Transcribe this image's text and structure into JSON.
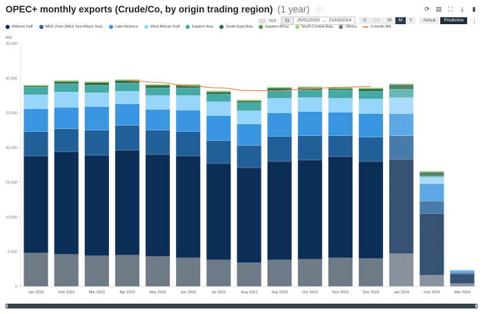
{
  "header": {
    "title": "OPEC+ monthly exports (Crude/Co, by origin trading region)",
    "subtitle": "(1 year)",
    "info_icon": "info-icon"
  },
  "toolbar": {
    "icons": [
      "refresh-icon",
      "comment-icon",
      "fullscreen-icon",
      "download-icon",
      "bookmark-icon"
    ],
    "yoy_label": "YoY",
    "period_label": "1y",
    "date_from": "25/01/2023",
    "date_sep": "–",
    "date_to": "21/03/2024",
    "granularity": [
      {
        "label": "D",
        "state": "normal"
      },
      {
        "label": "EIA",
        "state": "disabled"
      },
      {
        "label": "W",
        "state": "normal"
      },
      {
        "label": "M",
        "state": "active"
      },
      {
        "label": "Y",
        "state": "normal"
      }
    ],
    "mode": [
      {
        "label": "Actual",
        "state": "normal"
      },
      {
        "label": "Predictive",
        "state": "active"
      }
    ],
    "more_icon": "more-vertical-icon"
  },
  "colors": {
    "Others": "#6e7b87",
    "Mideast Gulf": "#0c2d55",
    "MED Zone (MED Sea+Black Sea)": "#215f98",
    "Latin America": "#3a95e0",
    "West African Gulf": "#97d6fb",
    "Eastern Asia": "#45aaa6",
    "South-East Asia": "#2e6b46",
    "Eastern Africa": "#4d9e3b",
    "South-Central Asia": "#a4d47a",
    "3-month MA": "#e28a4e"
  },
  "chart_data": {
    "type": "bar",
    "stacked": true,
    "title": "OPEC+ monthly exports (Crude/Co, by origin trading region)",
    "xlabel": "",
    "ylabel": "kbd",
    "ylim": [
      0,
      35000
    ],
    "yticks": [
      "0",
      "5,000",
      "10,000",
      "15,000",
      "20,000",
      "25,000",
      "30,000",
      "35,000"
    ],
    "ytick_values": [
      0,
      5000,
      10000,
      15000,
      20000,
      25000,
      30000,
      35000
    ],
    "grid": false,
    "legend_position": "top-left",
    "categories": [
      "Jan 2023",
      "Feb 2023",
      "Mar 2023",
      "Apr 2023",
      "May 2023",
      "Jun 2023",
      "Jul 2023",
      "Aug 2023",
      "Sep 2023",
      "Oct 2023",
      "Nov 2023",
      "Dec 2023",
      "Jan 2024",
      "Feb 2024",
      "Mar 2024"
    ],
    "predictive_from_index": 12,
    "legend_order": [
      "Midexst Gulf",
      "MED Zone (MED Sea+Black Sea)",
      "Latin America",
      "West African Gulf",
      "Eastern Asia",
      "South-East Asia",
      "Eastern Africa",
      "South-Central Asia",
      "Others",
      "3-month MA"
    ],
    "series": [
      {
        "name": "Others",
        "values": [
          4800,
          4600,
          4400,
          4500,
          4300,
          4100,
          3800,
          3400,
          3800,
          3900,
          4100,
          4000,
          4700,
          1600,
          400
        ]
      },
      {
        "name": "Midexst Gulf",
        "values": [
          14000,
          14800,
          14500,
          15100,
          14700,
          14700,
          13900,
          13700,
          14200,
          14300,
          14600,
          14000,
          13600,
          8900,
          1400
        ]
      },
      {
        "name": "MED Zone (MED Sea+Black Sea)",
        "values": [
          3500,
          3300,
          3600,
          3600,
          3500,
          3500,
          3300,
          3200,
          3600,
          3500,
          3000,
          3500,
          3400,
          1800,
          200
        ]
      },
      {
        "name": "Latin America",
        "values": [
          3300,
          3100,
          3400,
          3100,
          3000,
          3100,
          3600,
          3100,
          3400,
          3500,
          3400,
          3400,
          3200,
          2500,
          300
        ]
      },
      {
        "name": "West African Gulf",
        "values": [
          2000,
          2200,
          2000,
          1800,
          2000,
          2100,
          2000,
          1900,
          2100,
          2000,
          2000,
          2100,
          2300,
          900,
          100
        ]
      },
      {
        "name": "Eastern Asia",
        "values": [
          1100,
          1200,
          1100,
          1200,
          1100,
          1100,
          1100,
          1200,
          1100,
          1100,
          1200,
          1100,
          1200,
          200,
          0
        ]
      },
      {
        "name": "South-East Asia",
        "values": [
          150,
          300,
          350,
          350,
          350,
          350,
          300,
          200,
          350,
          300,
          200,
          350,
          650,
          550,
          0
        ]
      },
      {
        "name": "Eastern Africa",
        "values": [
          100,
          100,
          100,
          100,
          100,
          100,
          100,
          100,
          100,
          100,
          100,
          100,
          100,
          100,
          0
        ]
      },
      {
        "name": "South-Central Asia",
        "values": [
          100,
          100,
          100,
          100,
          100,
          100,
          100,
          100,
          100,
          100,
          100,
          100,
          100,
          100,
          0
        ]
      }
    ],
    "moving_average": {
      "name": "3-month MA",
      "start_index": 3,
      "values": [
        null,
        null,
        null,
        29650,
        29400,
        28900,
        28600,
        28200,
        28200,
        28500,
        28700,
        28800,
        null,
        null,
        null
      ]
    }
  }
}
